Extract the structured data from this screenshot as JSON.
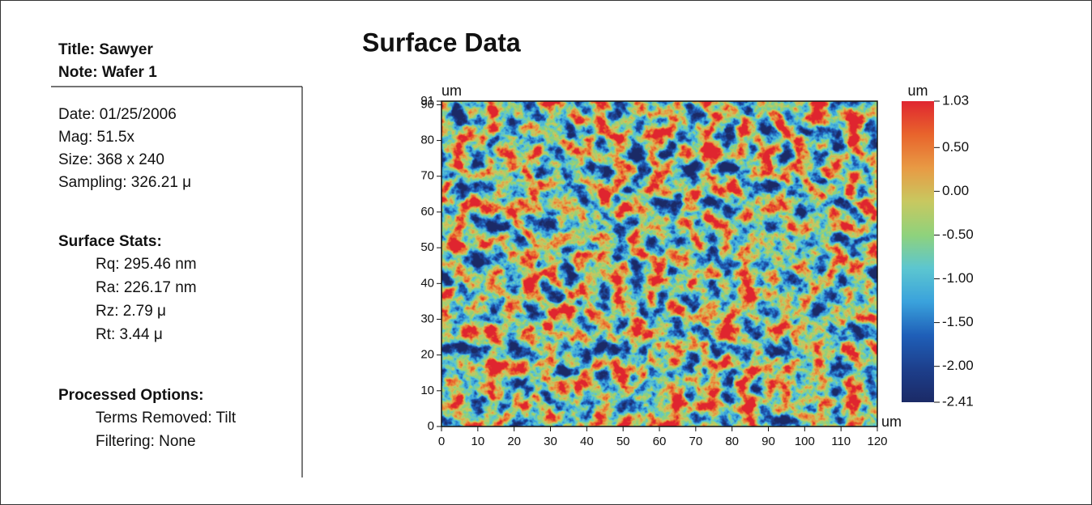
{
  "panel": {
    "title": "Title: Sawyer",
    "note": "Note: Wafer 1",
    "info": [
      "Date: 01/25/2006",
      "Mag: 51.5x",
      "Size: 368 x 240",
      "Sampling: 326.21 μ"
    ],
    "stats_heading": "Surface Stats:",
    "stats": [
      "Rq: 295.46 nm",
      "Ra: 226.17 nm",
      "Rz: 2.79 μ",
      "Rt: 3.44 μ"
    ],
    "options_heading": "Processed Options:",
    "options": [
      "Terms Removed: Tilt",
      "Filtering: None"
    ]
  },
  "chart_data": {
    "type": "heatmap",
    "title": "Surface Data",
    "xlabel": "um",
    "ylabel": "um",
    "xlim": [
      0,
      120
    ],
    "ylim": [
      0,
      91
    ],
    "xticks": [
      0,
      10,
      20,
      30,
      40,
      50,
      60,
      70,
      80,
      90,
      100,
      110,
      120
    ],
    "yticks": [
      0,
      10,
      20,
      30,
      40,
      50,
      60,
      70,
      80,
      90,
      91
    ],
    "colorbar": {
      "label": "um",
      "lim": [
        -2.41,
        1.03
      ],
      "ticks": [
        -2.41,
        {
          "value": -2,
          "label": "-2.00"
        },
        {
          "value": -1.5,
          "label": "-1.50"
        },
        {
          "value": -1,
          "label": "-1.00"
        },
        {
          "value": -0.5,
          "label": "-0.50"
        },
        {
          "value": 0,
          "label": "0.00"
        },
        {
          "value": 0.5,
          "label": "0.50"
        },
        1.03
      ],
      "colormap": [
        "#1b2a66",
        "#1d3f8c",
        "#1f5fb8",
        "#3aa2dc",
        "#5cc6d0",
        "#8fd27c",
        "#c8c860",
        "#e89a44",
        "#e8642c",
        "#e02630"
      ]
    }
  }
}
